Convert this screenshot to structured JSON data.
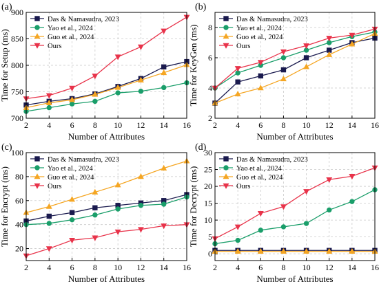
{
  "chart_data": [
    {
      "type": "line",
      "panel_label": "(a)",
      "xlabel": "Number of Attributes",
      "ylabel": "Time for Setup (ms)",
      "x": [
        2,
        4,
        6,
        8,
        10,
        12,
        14,
        16
      ],
      "xlim": [
        2,
        16
      ],
      "ylim": [
        700,
        900
      ],
      "yticks": [
        700,
        750,
        800,
        850,
        900
      ],
      "grid": true,
      "legend": "top-left",
      "series": [
        {
          "name": "Das & Namasudra, 2023",
          "color": "#1a1a4e",
          "marker": "square",
          "values": [
            725,
            732,
            737,
            746,
            760,
            775,
            797,
            807
          ]
        },
        {
          "name": "Yao et al., 2024",
          "color": "#1a9e6a",
          "marker": "circle",
          "values": [
            713,
            720,
            727,
            732,
            748,
            751,
            758,
            767
          ]
        },
        {
          "name": "Guo et al., 2024",
          "color": "#f5a623",
          "marker": "triangle-up",
          "values": [
            720,
            729,
            735,
            745,
            758,
            772,
            786,
            801
          ]
        },
        {
          "name": "Ours",
          "color": "#e8334a",
          "marker": "triangle-down",
          "values": [
            737,
            743,
            757,
            780,
            816,
            835,
            865,
            891
          ]
        }
      ]
    },
    {
      "type": "line",
      "panel_label": "(b)",
      "xlabel": "Number of Attributes",
      "ylabel": "Time for KeyGen (ms)",
      "x": [
        2,
        4,
        6,
        8,
        10,
        12,
        14,
        16
      ],
      "xlim": [
        2,
        16
      ],
      "ylim": [
        2,
        9
      ],
      "yticks": [
        2,
        4,
        6,
        8
      ],
      "grid": true,
      "legend": "top-left",
      "series": [
        {
          "name": "Das & Namasudra, 2023",
          "color": "#1a1a4e",
          "marker": "square",
          "values": [
            3.0,
            4.4,
            4.8,
            5.2,
            6.0,
            6.5,
            7.0,
            7.3
          ]
        },
        {
          "name": "Yao et al., 2024",
          "color": "#1a9e6a",
          "marker": "circle",
          "values": [
            4.0,
            5.0,
            5.5,
            6.0,
            6.5,
            7.0,
            7.4,
            7.7
          ]
        },
        {
          "name": "Guo et al., 2024",
          "color": "#f5a623",
          "marker": "triangle-up",
          "values": [
            3.0,
            3.6,
            4.0,
            4.6,
            5.4,
            6.2,
            6.9,
            7.6
          ]
        },
        {
          "name": "Ours",
          "color": "#e8334a",
          "marker": "triangle-down",
          "values": [
            4.0,
            5.3,
            5.7,
            6.4,
            6.8,
            7.3,
            7.5,
            7.9
          ]
        }
      ]
    },
    {
      "type": "line",
      "panel_label": "(c)",
      "xlabel": "Number of Attributes",
      "ylabel": "Time for Encrypt (ms)",
      "x": [
        2,
        4,
        6,
        8,
        10,
        12,
        14,
        16
      ],
      "xlim": [
        2,
        16
      ],
      "ylim": [
        10,
        100
      ],
      "yticks": [
        20,
        40,
        60,
        80,
        100
      ],
      "grid": true,
      "legend": "top-left",
      "series": [
        {
          "name": "Das & Namasudra, 2023",
          "color": "#1a1a4e",
          "marker": "square",
          "values": [
            43,
            47,
            50,
            54,
            56,
            58,
            60,
            65
          ]
        },
        {
          "name": "Yao et al., 2024",
          "color": "#1a9e6a",
          "marker": "circle",
          "values": [
            40,
            41,
            44,
            48,
            53,
            56,
            57,
            63
          ]
        },
        {
          "name": "Guo et al., 2024",
          "color": "#f5a623",
          "marker": "triangle-up",
          "values": [
            50,
            55,
            61,
            67,
            73,
            80,
            87,
            93
          ]
        },
        {
          "name": "Ours",
          "color": "#e8334a",
          "marker": "triangle-down",
          "values": [
            14,
            20,
            27,
            29,
            34,
            36,
            39,
            40
          ]
        }
      ]
    },
    {
      "type": "line",
      "panel_label": "(d)",
      "xlabel": "Number of Attributes",
      "ylabel": "Time for Decrypt (ms)",
      "x": [
        2,
        4,
        6,
        8,
        10,
        12,
        14,
        16
      ],
      "xlim": [
        2,
        16
      ],
      "ylim": [
        -2,
        30
      ],
      "yticks": [
        0,
        5,
        10,
        15,
        20,
        25,
        30
      ],
      "grid": true,
      "legend": "top-left",
      "series": [
        {
          "name": "Das & Namasudra, 2023",
          "color": "#1a1a4e",
          "marker": "square",
          "values": [
            1.0,
            1.0,
            1.0,
            1.0,
            1.0,
            1.0,
            1.0,
            1.0
          ]
        },
        {
          "name": "Yao et al., 2024",
          "color": "#1a9e6a",
          "marker": "circle",
          "values": [
            3.0,
            4.0,
            7.0,
            8.0,
            9.0,
            13.0,
            15.5,
            19.0
          ]
        },
        {
          "name": "Guo et al., 2024",
          "color": "#f5a623",
          "marker": "triangle-up",
          "values": [
            0.7,
            0.7,
            0.7,
            0.7,
            0.7,
            0.7,
            0.7,
            0.7
          ]
        },
        {
          "name": "Ours",
          "color": "#e8334a",
          "marker": "triangle-down",
          "values": [
            4.5,
            8.0,
            12.0,
            14.0,
            18.5,
            22.0,
            23.0,
            25.5
          ]
        }
      ]
    }
  ]
}
